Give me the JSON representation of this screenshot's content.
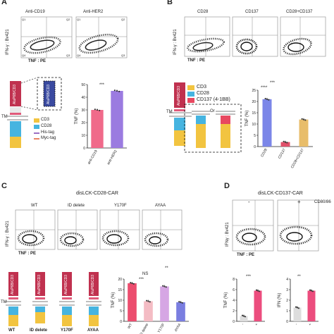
{
  "panels": {
    "A": {
      "letter": "A",
      "flow_labels": [
        "Anti-CD19",
        "Anti-HER2"
      ],
      "quadrants": [
        [
          "Q1",
          "Q2",
          "Q3",
          "Q4"
        ],
        [
          "Q1",
          "Q2",
          "Q3",
          "Q4"
        ]
      ],
      "y_axis": "IFN-γ : Bv421",
      "x_axis": "TNF : PE",
      "construct_top": "AluP6B/CD3",
      "construct_top2": "AluP6B/CD3",
      "legend": [
        "CD3",
        "CD28",
        "His-tag",
        "Myc-tag"
      ],
      "tm": "TM",
      "significance": "***"
    },
    "B": {
      "letter": "B",
      "flow_labels": [
        "CD28",
        "CD137",
        "CD28+CD137"
      ],
      "y_axis": "IFN-γ : Bv421",
      "x_axis": "TNF : PE",
      "construct_top": "AluP6B/CD3",
      "legend": [
        "CD3",
        "CD28",
        "CD137 (4-1BB)"
      ],
      "tm": "TM",
      "or": "Or",
      "sig1": "****",
      "sig2": "***"
    },
    "C": {
      "letter": "C",
      "title": "disLCK-CD28-CAR",
      "flow_labels": [
        "WT",
        "ID delete",
        "Y170F",
        "AYAA"
      ],
      "y_axis": "IFN-γ : Bv421",
      "x_axis": "TNF : PE",
      "construct_labels": [
        "WT",
        "ID delete",
        "Y170F",
        "AYAA"
      ],
      "construct_top": "AluP6B/CD3",
      "tm": "TM",
      "sig_ns": "NS",
      "sig1": "***",
      "sig2": "**"
    },
    "D": {
      "letter": "D",
      "title": "disLCK-CD137-CAR",
      "flow_labels": [
        "-",
        "+"
      ],
      "ligand": "CD80/86",
      "y_axis": "IFNγ : Bv421",
      "x_axis": "TNF : PE",
      "sig1": "***",
      "sig2": "**"
    }
  },
  "chart_data": [
    {
      "type": "bar",
      "panel": "A",
      "categories": [
        "anti-CD19",
        "anti-HER2"
      ],
      "values": [
        30,
        45
      ],
      "ylabel": "TNF (%)",
      "ylim": [
        0,
        50
      ],
      "yticks": [
        0,
        10,
        20,
        30,
        40,
        50
      ],
      "colors": [
        "#f06a8a",
        "#9b7be0"
      ]
    },
    {
      "type": "bar",
      "panel": "B",
      "categories": [
        "CD28",
        "CD137",
        "CD28+CD137"
      ],
      "values": [
        21,
        2,
        12
      ],
      "ylabel": "TNF (%)",
      "ylim": [
        0,
        25
      ],
      "yticks": [
        0,
        5,
        10,
        15,
        20,
        25
      ],
      "colors": [
        "#7b86e8",
        "#e0506a",
        "#e8bd6a"
      ]
    },
    {
      "type": "bar",
      "panel": "C",
      "categories": [
        "WT",
        "ID delete",
        "Y170F",
        "AYAA"
      ],
      "values": [
        18,
        9.5,
        16.5,
        9
      ],
      "ylabel": "TNF (%)",
      "ylim": [
        0,
        20
      ],
      "yticks": [
        0,
        5,
        10,
        15,
        20
      ],
      "colors": [
        "#ec4d6e",
        "#f4bcc4",
        "#d6a6e4",
        "#7a7ee0"
      ]
    },
    {
      "type": "bar",
      "panel": "D-TNF",
      "categories": [
        "-",
        "+"
      ],
      "values": [
        1,
        5.8
      ],
      "ylabel": "TNF (%)",
      "ylim": [
        0,
        8
      ],
      "yticks": [
        0,
        2,
        4,
        6,
        8
      ],
      "colors": [
        "#dddddd",
        "#ec4d7e"
      ]
    },
    {
      "type": "bar",
      "panel": "D-IFN",
      "categories": [
        "-",
        "+"
      ],
      "values": [
        1.3,
        2.9
      ],
      "ylabel": "IFN (%)",
      "ylim": [
        0,
        4
      ],
      "yticks": [
        0,
        1,
        2,
        3,
        4
      ],
      "colors": [
        "#dddddd",
        "#ec4d7e"
      ]
    }
  ]
}
